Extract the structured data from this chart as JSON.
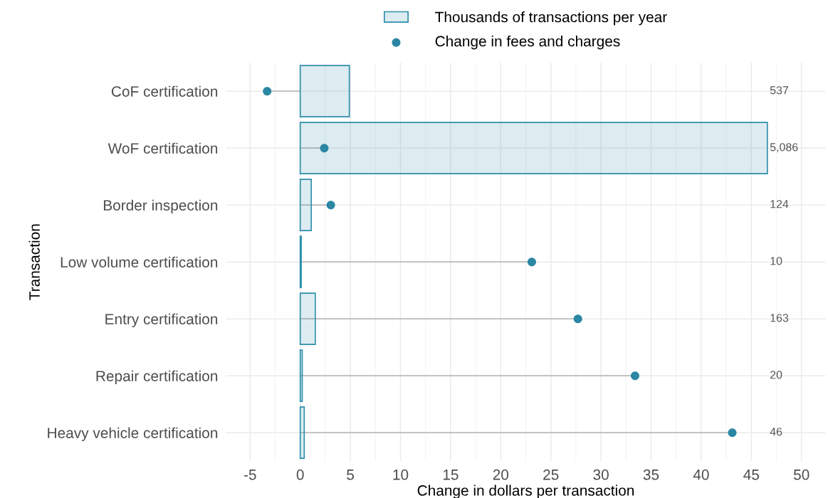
{
  "chart_data": {
    "type": "bar",
    "orientation": "horizontal",
    "xlabel": "Change in dollars per transaction",
    "ylabel": "Transaction",
    "categories": [
      "CoF certification",
      "WoF certification",
      "Border inspection",
      "Low volume certification",
      "Entry certification",
      "Repair certification",
      "Heavy vehicle certification"
    ],
    "series": [
      {
        "name": "Thousands of transactions per year",
        "type": "bar",
        "color": "#2e8fab",
        "values": [
          4.9,
          46.6,
          1.1,
          0.1,
          1.5,
          0.2,
          0.4
        ]
      },
      {
        "name": "Change in fees and charges",
        "type": "lollipop",
        "color": "#2a87a3",
        "values": [
          -3.3,
          2.4,
          3.05,
          23.1,
          27.7,
          33.4,
          43.1
        ]
      }
    ],
    "annotations": [
      "537",
      "5,086",
      "124",
      "10",
      "163",
      "20",
      "46"
    ],
    "xlim": [
      -7.4,
      52.4
    ],
    "xticks": [
      -5,
      0,
      5,
      10,
      15,
      20,
      25,
      30,
      35,
      40,
      45,
      50
    ],
    "grid": true,
    "legend": "top",
    "marker": "circle"
  }
}
